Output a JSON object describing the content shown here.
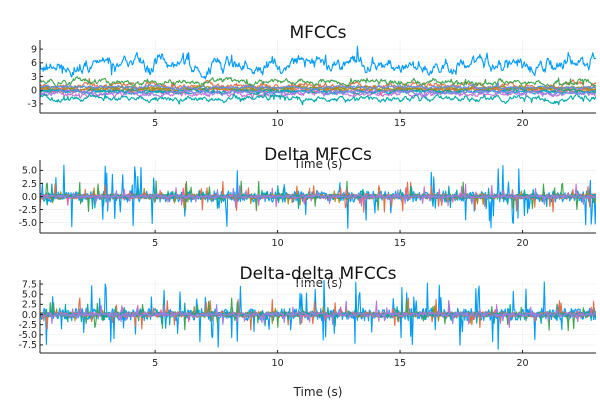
{
  "chart_data": [
    {
      "type": "line",
      "title": "MFCCs",
      "xlabel": "Time (s)",
      "ylabel": "",
      "xlim": [
        0.3,
        23.0
      ],
      "ylim": [
        -5,
        11
      ],
      "xticks": [
        5,
        10,
        15,
        20
      ],
      "yticks": [
        -3,
        0,
        3,
        6,
        9
      ],
      "ytick_labels": [
        "-3",
        "0",
        "3",
        "6",
        "9"
      ],
      "grid": true,
      "legend": "none",
      "series": [
        {
          "color": "#009AFA",
          "base": 5.5,
          "amp": 2.2,
          "spike": 0.04
        },
        {
          "color": "#E36F47",
          "base": 1.0,
          "amp": 0.9,
          "spike": 0.03
        },
        {
          "color": "#3EA44E",
          "base": 1.8,
          "amp": 0.9,
          "spike": 0.03
        },
        {
          "color": "#C371D2",
          "base": -0.8,
          "amp": 0.8,
          "spike": 0.03
        },
        {
          "color": "#AC8D18",
          "base": 0.3,
          "amp": 0.6,
          "spike": 0.02
        },
        {
          "color": "#00A9AD",
          "base": -1.8,
          "amp": 0.9,
          "spike": 0.03
        },
        {
          "color": "#ED5E93",
          "base": 0.0,
          "amp": 0.6,
          "spike": 0.02
        },
        {
          "color": "#C68225",
          "base": 0.2,
          "amp": 0.5,
          "spike": 0.02
        },
        {
          "color": "#00A98D",
          "base": -0.2,
          "amp": 0.5,
          "spike": 0.02
        },
        {
          "color": "#8E971D",
          "base": 0.4,
          "amp": 0.5,
          "spike": 0.02
        },
        {
          "color": "#00A8CB",
          "base": -0.4,
          "amp": 0.5,
          "spike": 0.02
        },
        {
          "color": "#9B7FE9",
          "base": -0.6,
          "amp": 0.7,
          "spike": 0.02
        },
        {
          "color": "#618DF6",
          "base": 0.6,
          "amp": 0.5,
          "spike": 0.02
        }
      ]
    },
    {
      "type": "line",
      "title": "Delta MFCCs",
      "xlabel": "Time (s)",
      "ylabel": "",
      "xlim": [
        0.3,
        23.0
      ],
      "ylim": [
        -7,
        7
      ],
      "xticks": [
        5,
        10,
        15,
        20
      ],
      "yticks": [
        -5,
        -2.5,
        0,
        2.5,
        5
      ],
      "ytick_labels": [
        "-5.0",
        "-2.5",
        "0.0",
        "2.5",
        "5.0"
      ],
      "grid": true,
      "legend": "none",
      "series": [
        {
          "color": "#009AFA",
          "base": 0,
          "amp": 1.8,
          "spike": 0.08
        },
        {
          "color": "#E36F47",
          "base": 0,
          "amp": 0.9,
          "spike": 0.05
        },
        {
          "color": "#3EA44E",
          "base": 0,
          "amp": 0.9,
          "spike": 0.05
        },
        {
          "color": "#C371D2",
          "base": 0,
          "amp": 0.7,
          "spike": 0.04
        },
        {
          "color": "#AC8D18",
          "base": 0,
          "amp": 0.5,
          "spike": 0.03
        },
        {
          "color": "#00A9AD",
          "base": 0,
          "amp": 0.7,
          "spike": 0.04
        },
        {
          "color": "#ED5E93",
          "base": 0,
          "amp": 0.5,
          "spike": 0.03
        },
        {
          "color": "#00A98D",
          "base": 0,
          "amp": 0.4,
          "spike": 0.03
        },
        {
          "color": "#9B7FE9",
          "base": 0,
          "amp": 0.5,
          "spike": 0.03
        }
      ]
    },
    {
      "type": "line",
      "title": "Delta-delta MFCCs",
      "xlabel": "Time (s)",
      "ylabel": "",
      "xlim": [
        0.3,
        23.0
      ],
      "ylim": [
        -9.5,
        8.5
      ],
      "xticks": [
        5,
        10,
        15,
        20
      ],
      "yticks": [
        -7.5,
        -5,
        -2.5,
        0,
        2.5,
        5,
        7.5
      ],
      "ytick_labels": [
        "-7.5",
        "-5.0",
        "-2.5",
        "0.0",
        "2.5",
        "5.0",
        "7.5"
      ],
      "grid": true,
      "legend": "none",
      "series": [
        {
          "color": "#009AFA",
          "base": 0,
          "amp": 2.6,
          "spike": 0.09
        },
        {
          "color": "#E36F47",
          "base": 0,
          "amp": 1.2,
          "spike": 0.05
        },
        {
          "color": "#3EA44E",
          "base": 0,
          "amp": 1.2,
          "spike": 0.05
        },
        {
          "color": "#C371D2",
          "base": 0,
          "amp": 1.0,
          "spike": 0.04
        },
        {
          "color": "#AC8D18",
          "base": 0,
          "amp": 0.7,
          "spike": 0.03
        },
        {
          "color": "#00A9AD",
          "base": 0,
          "amp": 0.9,
          "spike": 0.04
        },
        {
          "color": "#ED5E93",
          "base": 0,
          "amp": 0.7,
          "spike": 0.03
        },
        {
          "color": "#00A98D",
          "base": 0,
          "amp": 0.6,
          "spike": 0.03
        },
        {
          "color": "#9B7FE9",
          "base": 0,
          "amp": 0.8,
          "spike": 0.03
        }
      ]
    }
  ],
  "figure": {
    "bottom_xlabel": "Time (s)"
  }
}
